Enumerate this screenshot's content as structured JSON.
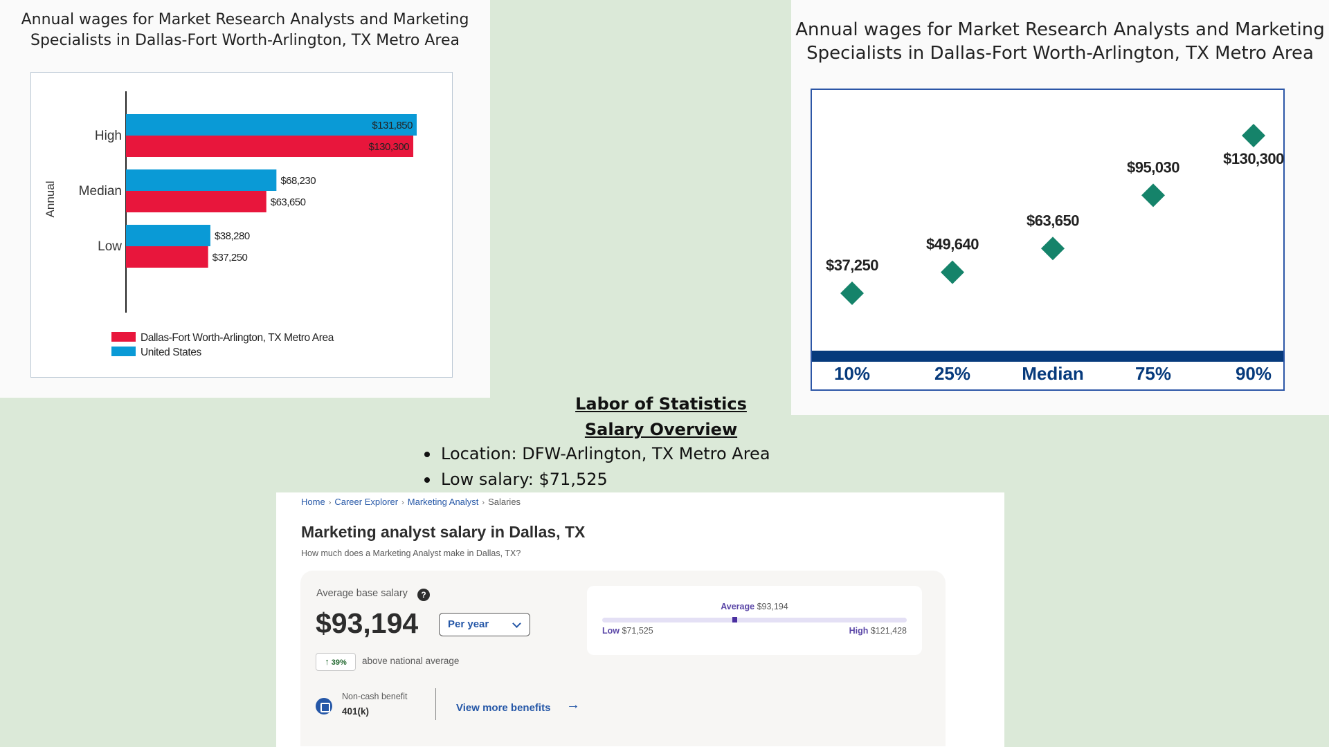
{
  "bar_chart": {
    "title": "Annual wages for Market Research Analysts and Marketing Specialists in Dallas-Fort Worth-Arlington, TX Metro Area",
    "chart_data": {
      "type": "bar",
      "orientation": "horizontal",
      "ylabel": "Annual",
      "categories": [
        "High",
        "Median",
        "Low"
      ],
      "series": [
        {
          "name": "United States",
          "color": "#0a9ad6",
          "values": [
            131850,
            68230,
            38280
          ],
          "labels": [
            "$131,850",
            "$68,230",
            "$38,280"
          ]
        },
        {
          "name": "Dallas-Fort Worth-Arlington, TX Metro Area",
          "color": "#e8163c",
          "values": [
            130300,
            63650,
            37250
          ],
          "labels": [
            "$130,300",
            "$63,650",
            "$37,250"
          ]
        }
      ],
      "legend": [
        "Dallas-Fort Worth-Arlington, TX Metro Area",
        "United States"
      ],
      "xlim": [
        0,
        131850
      ],
      "grid": false,
      "legend_placement": "bottom"
    }
  },
  "dot_chart": {
    "title": "Annual wages for Market Research Analysts and Marketing Specialists in Dallas-Fort Worth-Arlington, TX Metro Area",
    "chart_data": {
      "type": "scatter",
      "categories": [
        "10%",
        "25%",
        "Median",
        "75%",
        "90%"
      ],
      "values": [
        37250,
        49640,
        63650,
        95030,
        130300
      ],
      "labels": [
        "$37,250",
        "$49,640",
        "$63,650",
        "$95,030",
        "$130,300"
      ],
      "marker": "diamond",
      "color": "#15836a",
      "axis_color": "#063a7c",
      "ylim": [
        0,
        140000
      ],
      "grid": false
    }
  },
  "overview": {
    "title": "Labor of Statistics Salary Overview",
    "items": [
      "Location: DFW-Arlington, TX Metro Area",
      "Low salary: $71,525"
    ]
  },
  "salary": {
    "breadcrumb": [
      "Home",
      "Career Explorer",
      "Marketing Analyst",
      "Salaries"
    ],
    "title": "Marketing analyst salary in Dallas, TX",
    "subtitle": "How much does a Marketing Analyst make in Dallas, TX?",
    "avg_label": "Average base salary",
    "help_icon": "?",
    "avg_value": "$93,194",
    "period": "Per year",
    "pct": "39%",
    "pct_text": "above national average",
    "benefit_label": "Non-cash benefit",
    "benefit_value": "401(k)",
    "more_benefits": "View more benefits",
    "range": {
      "avg_label": "Average",
      "avg_value": "$93,194",
      "low_label": "Low",
      "low_value": "$71,525",
      "high_label": "High",
      "high_value": "$121,428",
      "avg_fraction": 0.433
    }
  }
}
